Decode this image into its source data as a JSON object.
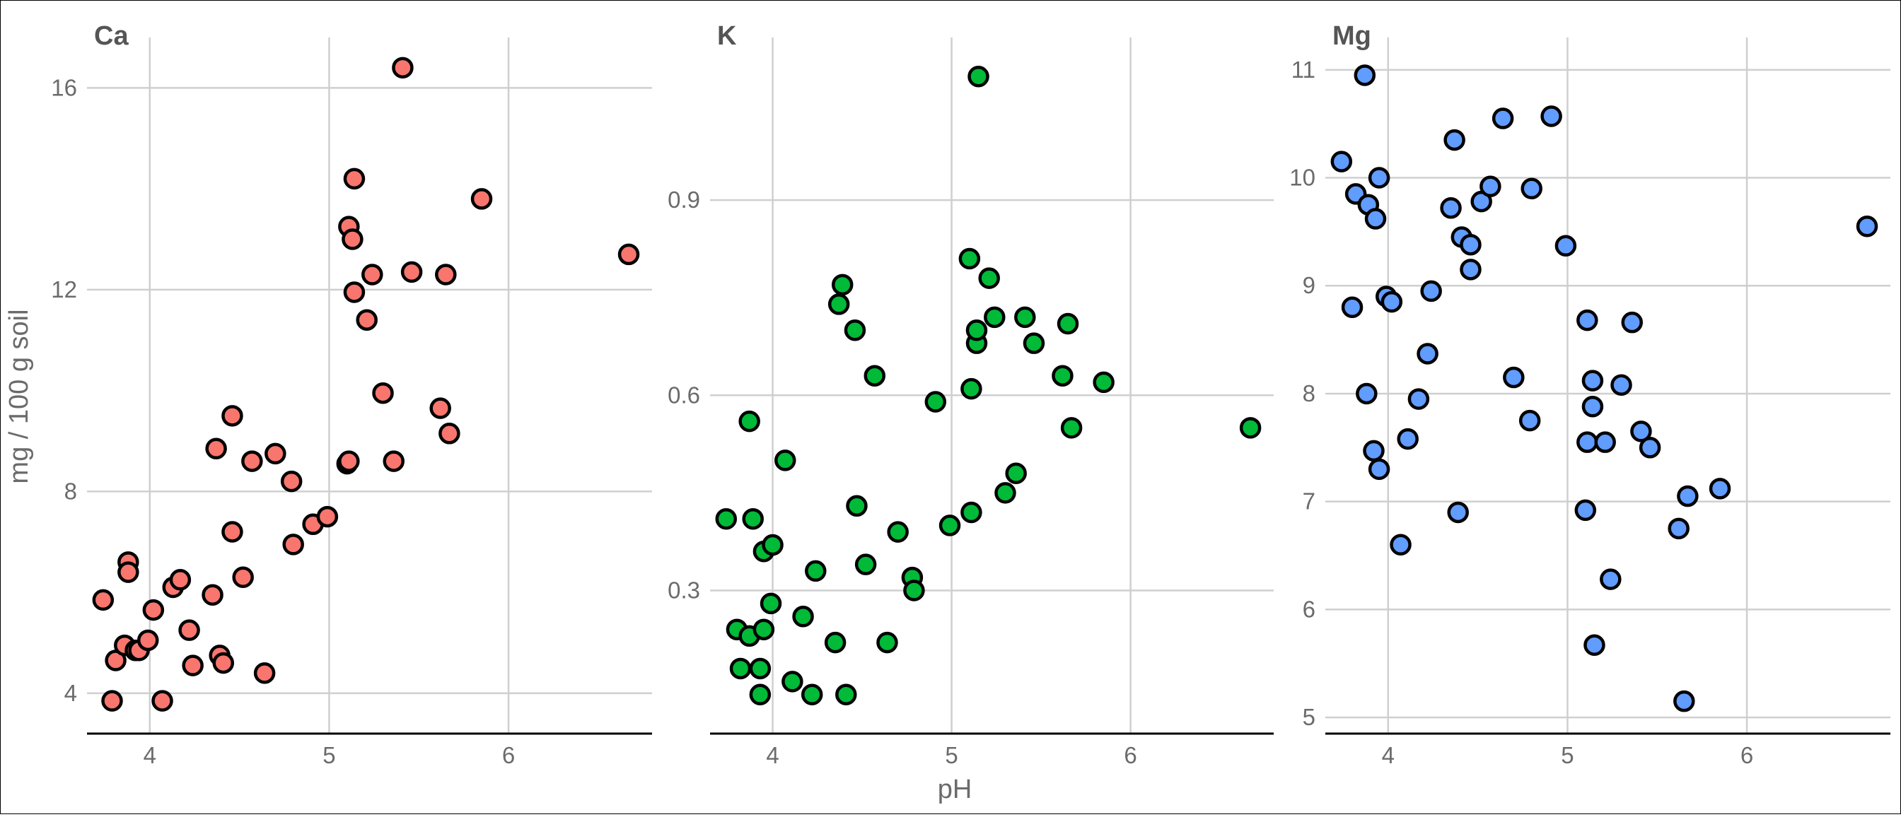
{
  "chart_data": {
    "type": "scatter",
    "xlabel": "pH",
    "ylabel": "mg / 100 g soil",
    "grid": true,
    "legend": "none",
    "panels": [
      {
        "title": "Ca",
        "color": "#F8766D",
        "xlim": [
          3.65,
          6.8
        ],
        "ylim": [
          3.2,
          17.0
        ],
        "xticks": [
          4,
          5,
          6
        ],
        "yticks": [
          4,
          8,
          12,
          16
        ],
        "ytick_labels": [
          "4",
          "8",
          "12",
          "16"
        ],
        "points": [
          [
            3.74,
            5.85
          ],
          [
            3.79,
            3.85
          ],
          [
            3.81,
            4.65
          ],
          [
            3.88,
            6.6
          ],
          [
            3.88,
            6.4
          ],
          [
            3.86,
            4.95
          ],
          [
            3.92,
            4.85
          ],
          [
            3.94,
            4.85
          ],
          [
            3.99,
            5.05
          ],
          [
            4.02,
            5.65
          ],
          [
            4.07,
            3.85
          ],
          [
            4.13,
            6.1
          ],
          [
            4.17,
            6.25
          ],
          [
            4.22,
            5.25
          ],
          [
            4.24,
            4.55
          ],
          [
            4.35,
            5.95
          ],
          [
            4.37,
            8.85
          ],
          [
            4.39,
            4.75
          ],
          [
            4.41,
            4.6
          ],
          [
            4.46,
            9.5
          ],
          [
            4.46,
            7.2
          ],
          [
            4.52,
            6.3
          ],
          [
            4.57,
            8.6
          ],
          [
            4.64,
            4.4
          ],
          [
            4.7,
            8.75
          ],
          [
            4.79,
            8.2
          ],
          [
            4.8,
            6.95
          ],
          [
            4.91,
            7.35
          ],
          [
            4.99,
            7.5
          ],
          [
            5.1,
            8.55
          ],
          [
            5.11,
            8.6
          ],
          [
            5.11,
            13.25
          ],
          [
            5.13,
            13.0
          ],
          [
            5.14,
            14.2
          ],
          [
            5.14,
            11.95
          ],
          [
            5.21,
            11.4
          ],
          [
            5.24,
            12.3
          ],
          [
            5.3,
            9.95
          ],
          [
            5.36,
            8.6
          ],
          [
            5.41,
            16.4
          ],
          [
            5.46,
            12.35
          ],
          [
            5.62,
            9.65
          ],
          [
            5.65,
            12.3
          ],
          [
            5.67,
            9.15
          ],
          [
            5.85,
            13.8
          ],
          [
            6.67,
            12.7
          ]
        ]
      },
      {
        "title": "K",
        "color": "#00BA38",
        "xlim": [
          3.65,
          6.8
        ],
        "ylim": [
          0.08,
          1.15
        ],
        "xticks": [
          4,
          5,
          6
        ],
        "yticks": [
          0.3,
          0.6,
          0.9
        ],
        "ytick_labels": [
          "0.3",
          "0.6",
          "0.9"
        ],
        "points": [
          [
            3.74,
            0.41
          ],
          [
            3.8,
            0.24
          ],
          [
            3.82,
            0.18
          ],
          [
            3.87,
            0.23
          ],
          [
            3.87,
            0.56
          ],
          [
            3.89,
            0.41
          ],
          [
            3.93,
            0.14
          ],
          [
            3.93,
            0.18
          ],
          [
            3.95,
            0.36
          ],
          [
            3.95,
            0.24
          ],
          [
            3.99,
            0.28
          ],
          [
            4.0,
            0.37
          ],
          [
            4.07,
            0.5
          ],
          [
            4.11,
            0.16
          ],
          [
            4.17,
            0.26
          ],
          [
            4.22,
            0.14
          ],
          [
            4.24,
            0.33
          ],
          [
            4.35,
            0.22
          ],
          [
            4.37,
            0.74
          ],
          [
            4.39,
            0.77
          ],
          [
            4.41,
            0.14
          ],
          [
            4.46,
            0.7
          ],
          [
            4.47,
            0.43
          ],
          [
            4.52,
            0.34
          ],
          [
            4.57,
            0.63
          ],
          [
            4.64,
            0.22
          ],
          [
            4.7,
            0.39
          ],
          [
            4.78,
            0.32
          ],
          [
            4.79,
            0.3
          ],
          [
            4.91,
            0.59
          ],
          [
            4.99,
            0.4
          ],
          [
            5.1,
            0.81
          ],
          [
            5.11,
            0.61
          ],
          [
            5.11,
            0.42
          ],
          [
            5.14,
            0.68
          ],
          [
            5.14,
            0.7
          ],
          [
            5.15,
            1.09
          ],
          [
            5.21,
            0.78
          ],
          [
            5.24,
            0.72
          ],
          [
            5.3,
            0.45
          ],
          [
            5.36,
            0.48
          ],
          [
            5.41,
            0.72
          ],
          [
            5.46,
            0.68
          ],
          [
            5.62,
            0.63
          ],
          [
            5.65,
            0.71
          ],
          [
            5.67,
            0.55
          ],
          [
            5.85,
            0.62
          ],
          [
            6.67,
            0.55
          ]
        ]
      },
      {
        "title": "Mg",
        "color": "#619CFF",
        "xlim": [
          3.65,
          6.8
        ],
        "ylim": [
          4.85,
          11.3
        ],
        "xticks": [
          4,
          5,
          6
        ],
        "yticks": [
          5,
          6,
          7,
          8,
          9,
          10,
          11
        ],
        "ytick_labels": [
          "5",
          "6",
          "7",
          "8",
          "9",
          "10",
          "11"
        ],
        "points": [
          [
            3.74,
            10.15
          ],
          [
            3.8,
            8.8
          ],
          [
            3.82,
            9.85
          ],
          [
            3.87,
            10.95
          ],
          [
            3.88,
            8.0
          ],
          [
            3.89,
            9.75
          ],
          [
            3.92,
            7.47
          ],
          [
            3.93,
            9.62
          ],
          [
            3.95,
            10.0
          ],
          [
            3.95,
            7.3
          ],
          [
            3.99,
            8.9
          ],
          [
            4.02,
            8.85
          ],
          [
            4.07,
            6.6
          ],
          [
            4.11,
            7.58
          ],
          [
            4.17,
            7.95
          ],
          [
            4.22,
            8.37
          ],
          [
            4.24,
            8.95
          ],
          [
            4.35,
            9.72
          ],
          [
            4.37,
            10.35
          ],
          [
            4.39,
            6.9
          ],
          [
            4.41,
            9.45
          ],
          [
            4.46,
            9.38
          ],
          [
            4.46,
            9.15
          ],
          [
            4.52,
            9.78
          ],
          [
            4.57,
            9.92
          ],
          [
            4.64,
            10.55
          ],
          [
            4.7,
            8.15
          ],
          [
            4.79,
            7.75
          ],
          [
            4.8,
            9.9
          ],
          [
            4.91,
            10.57
          ],
          [
            4.99,
            9.37
          ],
          [
            5.1,
            6.92
          ],
          [
            5.11,
            8.68
          ],
          [
            5.11,
            7.55
          ],
          [
            5.14,
            8.12
          ],
          [
            5.14,
            7.88
          ],
          [
            5.15,
            5.67
          ],
          [
            5.21,
            7.55
          ],
          [
            5.24,
            6.28
          ],
          [
            5.3,
            8.08
          ],
          [
            5.36,
            8.66
          ],
          [
            5.41,
            7.65
          ],
          [
            5.46,
            7.5
          ],
          [
            5.62,
            6.75
          ],
          [
            5.65,
            5.15
          ],
          [
            5.67,
            7.05
          ],
          [
            5.85,
            7.12
          ],
          [
            6.67,
            9.55
          ]
        ]
      }
    ]
  }
}
